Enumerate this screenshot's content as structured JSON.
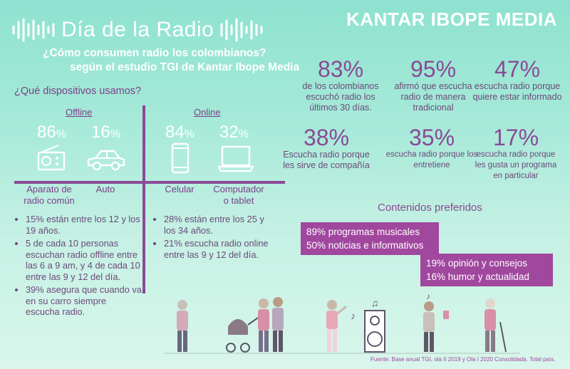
{
  "header": {
    "title": "Día de la Radio",
    "brand": "KANTAR IBOPE MEDIA",
    "subtitle_line1": "¿Cómo consumen radio los colombianos?",
    "subtitle_line2": "según el estudio TGI de Kantar Ibope Media"
  },
  "devices": {
    "question": "¿Qué dispositivos usamos?",
    "offline_label": "Offline",
    "online_label": "Online",
    "items": [
      {
        "value": "86",
        "unit": "%",
        "label_line1": "Aparato de",
        "label_line2": "radio común",
        "icon": "radio-icon"
      },
      {
        "value": "16",
        "unit": "%",
        "label_line1": "Auto",
        "label_line2": "",
        "icon": "car-icon"
      },
      {
        "value": "84",
        "unit": "%",
        "label_line1": "Celular",
        "label_line2": "",
        "icon": "phone-icon"
      },
      {
        "value": "32",
        "unit": "%",
        "label_line1": "Computador",
        "label_line2": "o tablet",
        "icon": "laptop-icon"
      }
    ]
  },
  "offline_notes": [
    "15% están entre los 12 y los 19 años.",
    "5 de cada 10 personas escuchan radio offline entre las 6 a 9 am, y 4 de cada 10 entre las 9 y 12 del día.",
    "39% asegura que cuando va en su carro siempre escucha radio."
  ],
  "online_notes": [
    "28% están entre los 25 y los 34 años.",
    "21% escucha radio online entre las 9 y 12 del día."
  ],
  "stats": [
    {
      "value": "83%",
      "text": "de los colombianos escuchó radio los últimos 30 días."
    },
    {
      "value": "95%",
      "text": "afirmó que escucha radio de manera tradicional"
    },
    {
      "value": "47%",
      "text": "escucha radio porque quiere estar informado"
    },
    {
      "value": "38%",
      "text": "Escucha radio porque les sirve de compañía"
    },
    {
      "value": "35%",
      "text": "escucha radio porque los entretiene"
    },
    {
      "value": "17%",
      "text": "escucha radio porque les gusta un programa en particular"
    }
  ],
  "contenidos": {
    "title": "Contenidos preferidos",
    "box1": [
      "89% programas musicales",
      "50% noticias e informativos"
    ],
    "box2": [
      "19% opinión y consejos",
      "16% humor y actualidad"
    ]
  },
  "footer": "Fuente: Base anual TGI, ola II 2019 y Ola I 2020 Consolidada. Total país.",
  "colors": {
    "accent_purple": "#a0479e",
    "line_purple": "#8a4a96",
    "background_mint": "#a8ead9"
  }
}
